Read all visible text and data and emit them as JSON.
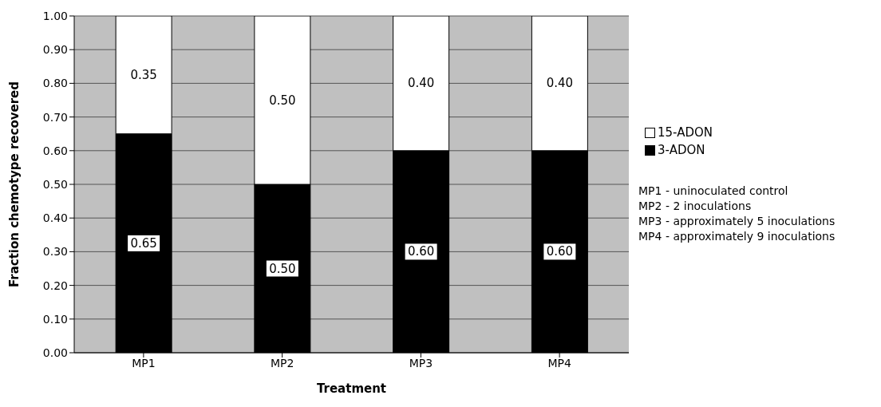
{
  "chart_data": {
    "type": "bar",
    "stacked": true,
    "xlabel": "Treatment",
    "ylabel": "Fraction chemotype recovered",
    "categories": [
      "MP1",
      "MP2",
      "MP3",
      "MP4"
    ],
    "series": [
      {
        "name": "3-ADON",
        "color": "#000000",
        "values": [
          0.65,
          0.5,
          0.6,
          0.6
        ],
        "value_labels": [
          "0.65",
          "0.50",
          "0.60",
          "0.60"
        ]
      },
      {
        "name": "15-ADON",
        "color": "#ffffff",
        "values": [
          0.35,
          0.5,
          0.4,
          0.4
        ],
        "value_labels": [
          "0.35",
          "0.50",
          "0.40",
          "0.40"
        ]
      }
    ],
    "ylim": [
      0,
      1
    ],
    "yticks": [
      {
        "value": 0,
        "label": "0.00"
      },
      {
        "value": 0.1,
        "label": "0.10"
      },
      {
        "value": 0.2,
        "label": "0.20"
      },
      {
        "value": 0.3,
        "label": "0.30"
      },
      {
        "value": 0.4,
        "label": "0.40"
      },
      {
        "value": 0.5,
        "label": "0.50"
      },
      {
        "value": 0.6,
        "label": "0.60"
      },
      {
        "value": 0.7,
        "label": "0.70"
      },
      {
        "value": 0.8,
        "label": "0.80"
      },
      {
        "value": 0.9,
        "label": "0.90"
      },
      {
        "value": 1,
        "label": "1.00"
      }
    ],
    "grid": "y",
    "legend": "right",
    "annotations": [
      "MP1 - uninoculated control",
      "MP2 - 2 inoculations",
      "MP3 - approximately 5 inoculations",
      "MP4 - approximately 9 inoculations"
    ]
  }
}
